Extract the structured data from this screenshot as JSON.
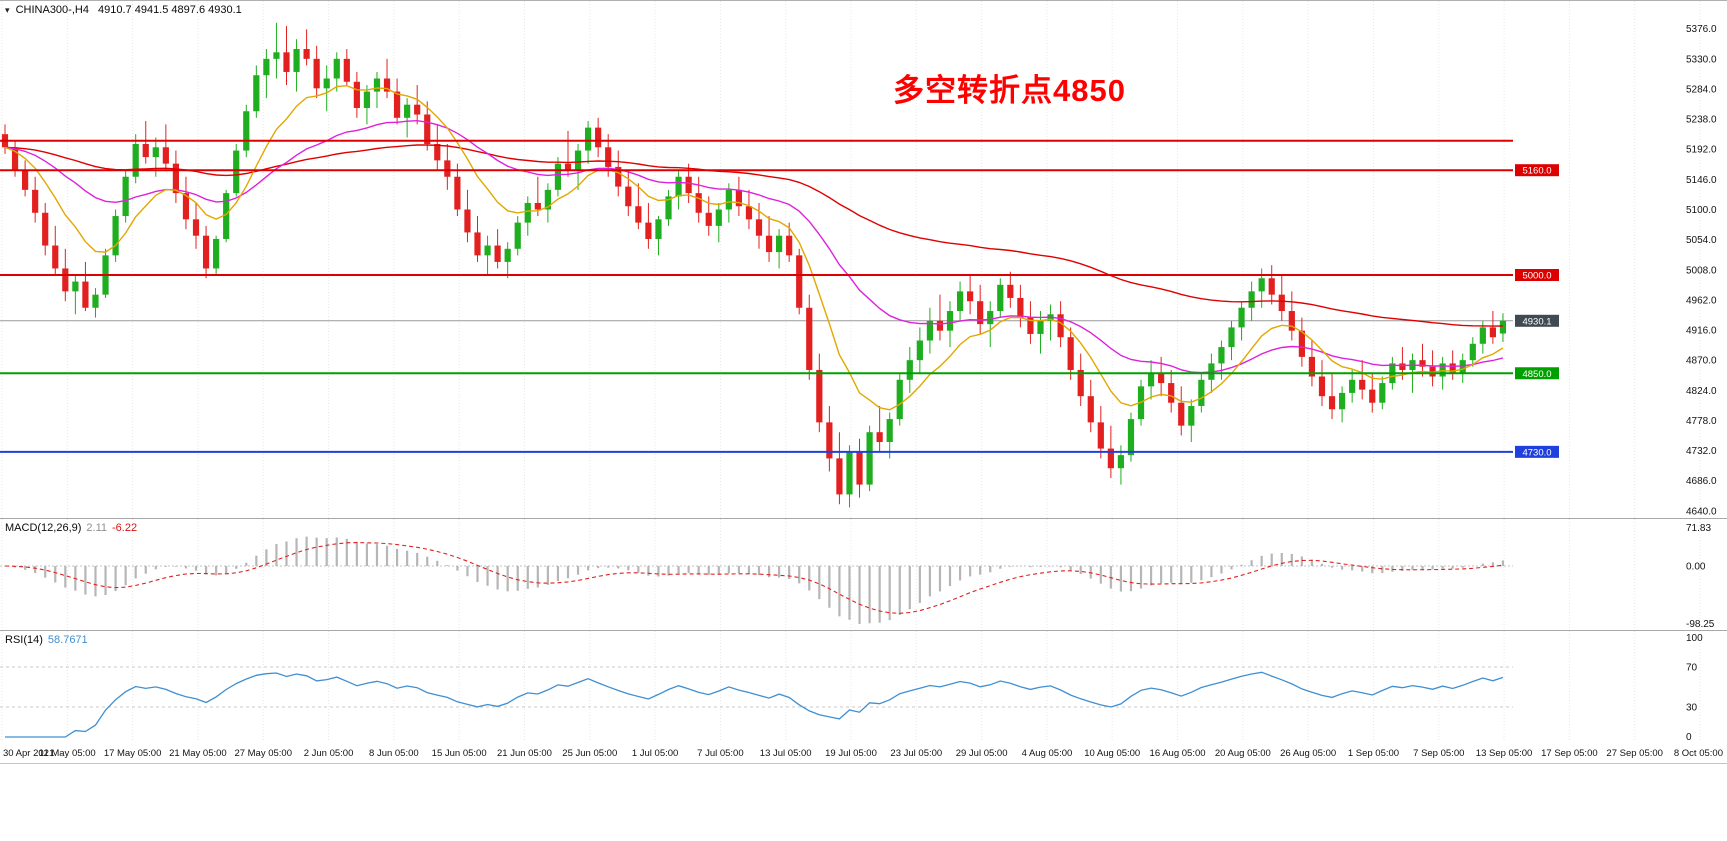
{
  "header": {
    "marker_icon": "▾",
    "symbol_text": "CHINA300-,H4",
    "ohlc_text": "4910.7 4941.5 4897.6 4930.1"
  },
  "annotation": {
    "text": "多空转折点4850",
    "color": "#ff0000"
  },
  "chart_data": {
    "type": "candlestick",
    "symbol": "CHINA300-",
    "timeframe": "H4",
    "title": "CHINA300-,H4",
    "ohlc_display": {
      "open": 4910.7,
      "high": 4941.5,
      "low": 4897.6,
      "close": 4930.1
    },
    "up_color": "#1fae1f",
    "down_color": "#e32020",
    "grid_color": "#e7e7e7",
    "price_axis": [
      5376.0,
      5330.0,
      5284.0,
      5238.0,
      5192.0,
      5146.0,
      5100.0,
      5054.0,
      5008.0,
      4962.0,
      4916.0,
      4870.0,
      4824.0,
      4778.0,
      4732.0,
      4686.0,
      4640.0
    ],
    "price_range_visible": [
      4640.0,
      5376.0
    ],
    "time_axis": [
      "30 Apr 2021",
      "11 May 05:00",
      "17 May 05:00",
      "21 May 05:00",
      "27 May 05:00",
      "2 Jun 05:00",
      "8 Jun 05:00",
      "15 Jun 05:00",
      "21 Jun 05:00",
      "25 Jun 05:00",
      "1 Jul 05:00",
      "7 Jul 05:00",
      "13 Jul 05:00",
      "19 Jul 05:00",
      "23 Jul 05:00",
      "29 Jul 05:00",
      "4 Aug 05:00",
      "10 Aug 05:00",
      "16 Aug 05:00",
      "20 Aug 05:00",
      "26 Aug 05:00",
      "1 Sep 05:00",
      "7 Sep 05:00",
      "13 Sep 05:00",
      "17 Sep 05:00",
      "27 Sep 05:00",
      "8 Oct 05:00"
    ],
    "h_lines": [
      {
        "price": 5205.0,
        "color": "#dd0000",
        "label": null,
        "width": 2
      },
      {
        "price": 5160.0,
        "color": "#dd0000",
        "label": "5160.0",
        "width": 2
      },
      {
        "price": 5000.0,
        "color": "#dd0000",
        "label": "5000.0",
        "width": 2
      },
      {
        "price": 4850.0,
        "color": "#00a000",
        "label": "4850.0",
        "width": 2
      },
      {
        "price": 4730.0,
        "color": "#2040dd",
        "label": "4730.0",
        "width": 2
      }
    ],
    "current_price": {
      "value": 4930.1,
      "label": "4930.1",
      "line_color": "#9a9a9a",
      "tag_color": "#3f4a52"
    },
    "moving_averages": [
      {
        "name": "long-ma",
        "period": 90,
        "color": "#e00000"
      },
      {
        "name": "medium-ma",
        "period": 30,
        "color": "#dd22dd"
      },
      {
        "name": "short-ma",
        "period": 10,
        "color": "#e0a800"
      }
    ],
    "indicators": {
      "macd": {
        "title": "MACD(12,26,9)",
        "main_value": "2.11",
        "signal_value": "-6.22",
        "params": [
          12,
          26,
          9
        ],
        "axis_labels": [
          "71.83",
          "0.00",
          "-98.25"
        ],
        "axis_max": 71.83,
        "axis_min": -98.25,
        "histogram_color": "#b6b6b6",
        "signal_color": "#e02020"
      },
      "rsi": {
        "title": "RSI(14)",
        "value": "58.7671",
        "period": 14,
        "axis_labels": [
          "100",
          "70",
          "30",
          "0"
        ],
        "levels": [
          70,
          30
        ],
        "line_color": "#3f8fd2",
        "level_color": "#c9c9c9"
      }
    },
    "candles": [
      [
        5215,
        5230,
        5185,
        5195
      ],
      [
        5195,
        5205,
        5150,
        5160
      ],
      [
        5160,
        5175,
        5120,
        5130
      ],
      [
        5130,
        5150,
        5080,
        5095
      ],
      [
        5095,
        5110,
        5030,
        5045
      ],
      [
        5045,
        5075,
        5000,
        5010
      ],
      [
        5010,
        5040,
        4960,
        4975
      ],
      [
        4975,
        5000,
        4940,
        4990
      ],
      [
        4990,
        5020,
        4945,
        4950
      ],
      [
        4950,
        4980,
        4935,
        4970
      ],
      [
        4970,
        5040,
        4965,
        5030
      ],
      [
        5030,
        5100,
        5020,
        5090
      ],
      [
        5090,
        5160,
        5080,
        5150
      ],
      [
        5150,
        5215,
        5140,
        5200
      ],
      [
        5200,
        5235,
        5170,
        5180
      ],
      [
        5180,
        5210,
        5150,
        5195
      ],
      [
        5195,
        5230,
        5160,
        5170
      ],
      [
        5170,
        5190,
        5110,
        5125
      ],
      [
        5125,
        5150,
        5070,
        5085
      ],
      [
        5085,
        5110,
        5040,
        5060
      ],
      [
        5060,
        5075,
        4995,
        5010
      ],
      [
        5010,
        5060,
        5000,
        5055
      ],
      [
        5055,
        5130,
        5050,
        5125
      ],
      [
        5125,
        5200,
        5120,
        5190
      ],
      [
        5190,
        5260,
        5180,
        5250
      ],
      [
        5250,
        5320,
        5240,
        5305
      ],
      [
        5305,
        5345,
        5270,
        5330
      ],
      [
        5330,
        5385,
        5300,
        5340
      ],
      [
        5340,
        5380,
        5290,
        5310
      ],
      [
        5310,
        5360,
        5280,
        5345
      ],
      [
        5345,
        5375,
        5320,
        5330
      ],
      [
        5330,
        5350,
        5270,
        5285
      ],
      [
        5285,
        5320,
        5250,
        5300
      ],
      [
        5300,
        5340,
        5280,
        5330
      ],
      [
        5330,
        5345,
        5290,
        5295
      ],
      [
        5295,
        5310,
        5240,
        5255
      ],
      [
        5255,
        5290,
        5230,
        5280
      ],
      [
        5280,
        5310,
        5255,
        5300
      ],
      [
        5300,
        5330,
        5270,
        5280
      ],
      [
        5280,
        5300,
        5230,
        5240
      ],
      [
        5240,
        5270,
        5210,
        5260
      ],
      [
        5260,
        5290,
        5230,
        5245
      ],
      [
        5245,
        5265,
        5190,
        5200
      ],
      [
        5200,
        5230,
        5160,
        5175
      ],
      [
        5175,
        5200,
        5130,
        5150
      ],
      [
        5150,
        5170,
        5090,
        5100
      ],
      [
        5100,
        5130,
        5050,
        5065
      ],
      [
        5065,
        5090,
        5020,
        5030
      ],
      [
        5030,
        5060,
        5000,
        5045
      ],
      [
        5045,
        5070,
        5010,
        5020
      ],
      [
        5020,
        5050,
        4995,
        5040
      ],
      [
        5040,
        5090,
        5030,
        5080
      ],
      [
        5080,
        5120,
        5060,
        5110
      ],
      [
        5110,
        5150,
        5090,
        5100
      ],
      [
        5100,
        5140,
        5080,
        5130
      ],
      [
        5130,
        5180,
        5120,
        5170
      ],
      [
        5170,
        5220,
        5150,
        5160
      ],
      [
        5160,
        5200,
        5130,
        5190
      ],
      [
        5190,
        5235,
        5170,
        5225
      ],
      [
        5225,
        5240,
        5180,
        5195
      ],
      [
        5195,
        5215,
        5150,
        5165
      ],
      [
        5165,
        5190,
        5120,
        5135
      ],
      [
        5135,
        5160,
        5090,
        5105
      ],
      [
        5105,
        5140,
        5070,
        5080
      ],
      [
        5080,
        5110,
        5040,
        5055
      ],
      [
        5055,
        5090,
        5030,
        5085
      ],
      [
        5085,
        5130,
        5075,
        5120
      ],
      [
        5120,
        5160,
        5100,
        5150
      ],
      [
        5150,
        5170,
        5110,
        5125
      ],
      [
        5125,
        5150,
        5080,
        5095
      ],
      [
        5095,
        5120,
        5060,
        5075
      ],
      [
        5075,
        5110,
        5050,
        5100
      ],
      [
        5100,
        5140,
        5080,
        5130
      ],
      [
        5130,
        5150,
        5090,
        5105
      ],
      [
        5105,
        5130,
        5070,
        5085
      ],
      [
        5085,
        5110,
        5040,
        5060
      ],
      [
        5060,
        5090,
        5020,
        5035
      ],
      [
        5035,
        5070,
        5010,
        5060
      ],
      [
        5060,
        5080,
        5020,
        5030
      ],
      [
        5030,
        5040,
        4940,
        4950
      ],
      [
        4950,
        4970,
        4840,
        4855
      ],
      [
        4855,
        4880,
        4760,
        4775
      ],
      [
        4775,
        4800,
        4700,
        4720
      ],
      [
        4720,
        4760,
        4650,
        4665
      ],
      [
        4665,
        4740,
        4645,
        4730
      ],
      [
        4730,
        4750,
        4660,
        4680
      ],
      [
        4680,
        4770,
        4670,
        4760
      ],
      [
        4760,
        4800,
        4730,
        4745
      ],
      [
        4745,
        4790,
        4720,
        4780
      ],
      [
        4780,
        4850,
        4770,
        4840
      ],
      [
        4840,
        4890,
        4820,
        4870
      ],
      [
        4870,
        4920,
        4850,
        4900
      ],
      [
        4900,
        4950,
        4880,
        4930
      ],
      [
        4930,
        4970,
        4900,
        4915
      ],
      [
        4915,
        4960,
        4890,
        4945
      ],
      [
        4945,
        4990,
        4930,
        4975
      ],
      [
        4975,
        5000,
        4940,
        4960
      ],
      [
        4960,
        4985,
        4910,
        4925
      ],
      [
        4925,
        4960,
        4890,
        4945
      ],
      [
        4945,
        4995,
        4935,
        4985
      ],
      [
        4985,
        5005,
        4950,
        4965
      ],
      [
        4965,
        4985,
        4920,
        4935
      ],
      [
        4935,
        4960,
        4895,
        4910
      ],
      [
        4910,
        4945,
        4880,
        4930
      ],
      [
        4930,
        4955,
        4900,
        4940
      ],
      [
        4940,
        4960,
        4890,
        4905
      ],
      [
        4905,
        4920,
        4840,
        4855
      ],
      [
        4855,
        4880,
        4800,
        4815
      ],
      [
        4815,
        4840,
        4760,
        4775
      ],
      [
        4775,
        4800,
        4720,
        4735
      ],
      [
        4735,
        4770,
        4690,
        4705
      ],
      [
        4705,
        4740,
        4680,
        4725
      ],
      [
        4725,
        4790,
        4715,
        4780
      ],
      [
        4780,
        4840,
        4770,
        4830
      ],
      [
        4830,
        4870,
        4810,
        4850
      ],
      [
        4850,
        4875,
        4815,
        4835
      ],
      [
        4835,
        4855,
        4790,
        4805
      ],
      [
        4805,
        4830,
        4755,
        4770
      ],
      [
        4770,
        4810,
        4745,
        4800
      ],
      [
        4800,
        4850,
        4790,
        4840
      ],
      [
        4840,
        4880,
        4820,
        4865
      ],
      [
        4865,
        4900,
        4840,
        4890
      ],
      [
        4890,
        4930,
        4870,
        4920
      ],
      [
        4920,
        4960,
        4900,
        4950
      ],
      [
        4950,
        4990,
        4930,
        4975
      ],
      [
        4975,
        5010,
        4950,
        4995
      ],
      [
        4995,
        5015,
        4955,
        4970
      ],
      [
        4970,
        5000,
        4930,
        4945
      ],
      [
        4945,
        4975,
        4900,
        4915
      ],
      [
        4915,
        4935,
        4860,
        4875
      ],
      [
        4875,
        4900,
        4830,
        4845
      ],
      [
        4845,
        4870,
        4800,
        4815
      ],
      [
        4815,
        4850,
        4780,
        4795
      ],
      [
        4795,
        4830,
        4775,
        4820
      ],
      [
        4820,
        4855,
        4805,
        4840
      ],
      [
        4840,
        4870,
        4810,
        4825
      ],
      [
        4825,
        4850,
        4790,
        4805
      ],
      [
        4805,
        4845,
        4795,
        4835
      ],
      [
        4835,
        4875,
        4825,
        4865
      ],
      [
        4865,
        4890,
        4840,
        4855
      ],
      [
        4855,
        4880,
        4820,
        4870
      ],
      [
        4870,
        4895,
        4845,
        4860
      ],
      [
        4860,
        4885,
        4830,
        4845
      ],
      [
        4845,
        4875,
        4825,
        4865
      ],
      [
        4865,
        4885,
        4840,
        4850
      ],
      [
        4850,
        4880,
        4835,
        4870
      ],
      [
        4870,
        4905,
        4860,
        4895
      ],
      [
        4895,
        4930,
        4880,
        4920
      ],
      [
        4920,
        4945,
        4895,
        4905
      ],
      [
        4910.7,
        4941.5,
        4897.6,
        4930.1
      ]
    ]
  }
}
